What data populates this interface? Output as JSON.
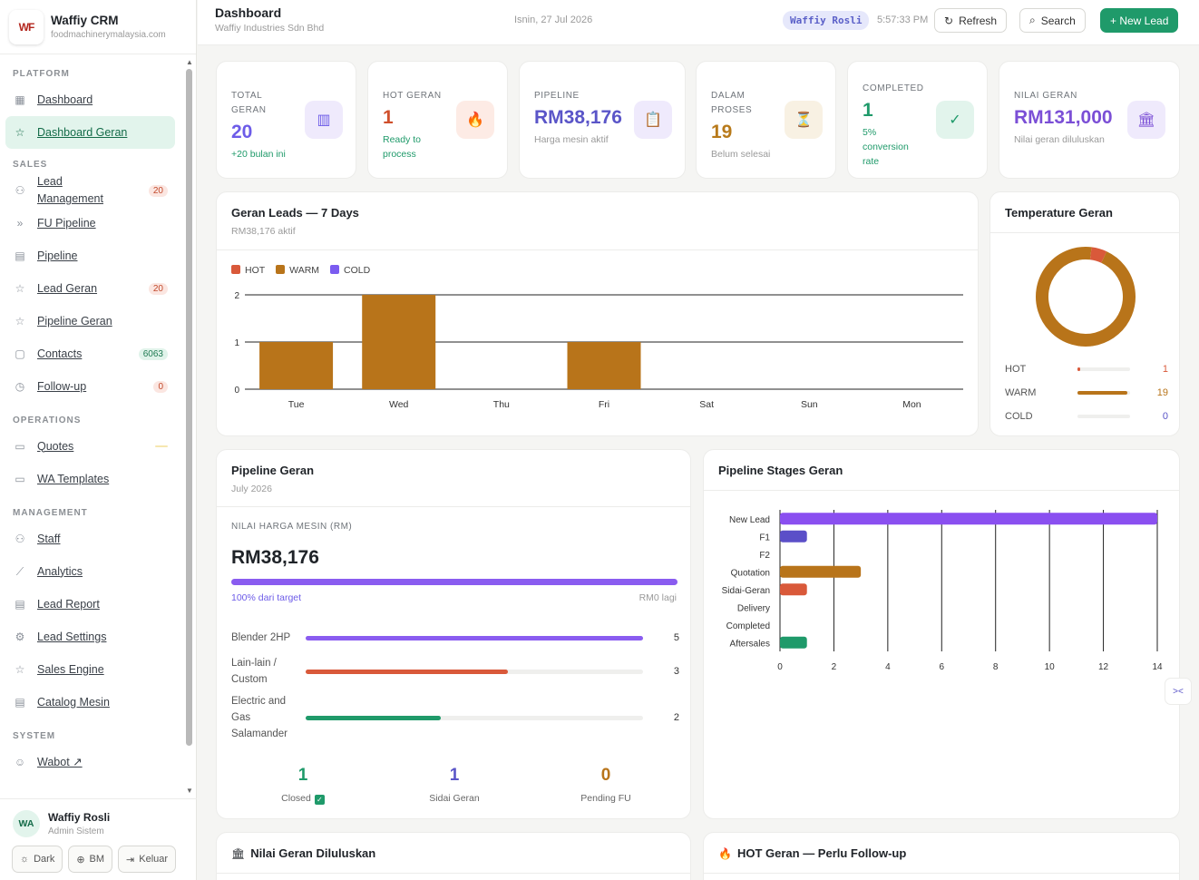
{
  "brand": {
    "logo_text": "WF",
    "name": "Waffiy CRM",
    "domain": "foodmachinerymalaysia.com"
  },
  "sidebar": {
    "sections": [
      {
        "title": "PLATFORM",
        "items": [
          {
            "label": "Dashboard",
            "icon": "grid-icon"
          },
          {
            "label": "Dashboard Geran",
            "icon": "star-icon",
            "active": true
          }
        ]
      },
      {
        "title": "SALES",
        "items": [
          {
            "label": "Lead\nManagement",
            "icon": "user-icon",
            "badge": "20"
          },
          {
            "label": "FU Pipeline",
            "icon": "chevrons-right-icon"
          },
          {
            "label": "Pipeline",
            "icon": "table-icon"
          },
          {
            "label": "Lead Geran",
            "icon": "star-icon",
            "badge": "20"
          },
          {
            "label": "Pipeline Geran",
            "icon": "star-icon"
          },
          {
            "label": "Contacts",
            "icon": "contact-icon",
            "badge": "6063",
            "badge_color": "green"
          },
          {
            "label": "Follow-up",
            "icon": "clock-icon",
            "badge": "0"
          }
        ]
      },
      {
        "title": "OPERATIONS",
        "items": [
          {
            "label": "Quotes",
            "icon": "document-icon",
            "badge": "",
            "badge_color": "amber"
          },
          {
            "label": "WA Templates",
            "icon": "document-icon"
          }
        ]
      },
      {
        "title": "MANAGEMENT",
        "items": [
          {
            "label": "Staff",
            "icon": "users-icon"
          },
          {
            "label": "Analytics",
            "icon": "trend-icon"
          },
          {
            "label": "Lead Report",
            "icon": "report-icon"
          },
          {
            "label": "Lead Settings",
            "icon": "settings-icon"
          },
          {
            "label": "Sales Engine",
            "icon": "star-icon"
          },
          {
            "label": "Catalog Mesin",
            "icon": "table-icon"
          }
        ]
      },
      {
        "title": "SYSTEM",
        "items": [
          {
            "label": "Wabot ↗",
            "icon": "bot-icon"
          }
        ]
      }
    ]
  },
  "user": {
    "initials": "WA",
    "name": "Waffiy Rosli",
    "role": "Admin Sistem",
    "dark_label": "Dark",
    "lang_label": "BM",
    "logout_label": "Keluar"
  },
  "header": {
    "title": "Dashboard",
    "subtitle": "Waffiy Industries Sdn Bhd",
    "date": "Isnin, 27 Jul 2026",
    "user_chip": "Waffiy Rosli",
    "time": "5:57:33 PM",
    "refresh_label": "Refresh",
    "search_label": "Search",
    "new_lead_label": "+ New Lead"
  },
  "stats": [
    {
      "label": "TOTAL\nGERAN",
      "value": "20",
      "sub": "+20 bulan ini",
      "color": "#6d5ce8",
      "sub_color": "#1f9a6a",
      "icon": "factory-icon",
      "icon_bg": "#efeafc",
      "glyph": "▥"
    },
    {
      "label": "HOT GERAN",
      "value": "1",
      "sub": "Ready to\nprocess",
      "color": "#d0502c",
      "sub_color": "#1f9a6a",
      "icon": "fire-icon",
      "icon_bg": "#fdebe5",
      "glyph": "🔥"
    },
    {
      "label": "PIPELINE",
      "value": "RM38,176",
      "sub": "Harga mesin aktif",
      "color": "#5a55c8",
      "sub_color": "#9a9a9a",
      "icon": "clipboard-icon",
      "icon_bg": "#efeafc",
      "glyph": "📋"
    },
    {
      "label": "DALAM\nPROSES",
      "value": "19",
      "sub": "Belum selesai",
      "color": "#b87a1a",
      "sub_color": "#9a9a9a",
      "icon": "hourglass-icon",
      "icon_bg": "#f8f1e3",
      "glyph": "⏳"
    },
    {
      "label": "COMPLETED",
      "value": "1",
      "sub": "5%\nconversion\nrate",
      "color": "#1f9a6a",
      "sub_color": "#1f9a6a",
      "icon": "check-icon",
      "icon_bg": "#e2f4ec",
      "glyph": "✓"
    },
    {
      "label": "NILAI GERAN",
      "value": "RM131,000",
      "sub": "Nilai geran diluluskan",
      "color": "#7b4fd6",
      "sub_color": "#9a9a9a",
      "icon": "bank-icon",
      "icon_bg": "#efeafc",
      "glyph": "🏛"
    }
  ],
  "leads_card": {
    "title": "Geran Leads — 7 Days",
    "subtitle": "RM38,176 aktif"
  },
  "chart_data": [
    {
      "type": "bar",
      "title": "Geran Leads — 7 Days",
      "categories": [
        "Tue",
        "Wed",
        "Thu",
        "Fri",
        "Sat",
        "Sun",
        "Mon"
      ],
      "series": [
        {
          "name": "HOT",
          "color": "#d9593a",
          "values": [
            0,
            0,
            0,
            0,
            0,
            0,
            0
          ]
        },
        {
          "name": "WARM",
          "color": "#b8741a",
          "values": [
            1,
            2,
            0,
            1,
            0,
            0,
            0
          ]
        },
        {
          "name": "COLD",
          "color": "#7b5cf0",
          "values": [
            0,
            0,
            0,
            0,
            0,
            0,
            0
          ]
        }
      ],
      "ylim": [
        0,
        2
      ],
      "yticks": [
        0,
        1,
        2
      ],
      "legend": "top-left",
      "grid": true
    },
    {
      "type": "pie",
      "title": "Temperature Geran",
      "categories": [
        "HOT",
        "WARM",
        "COLD"
      ],
      "values": [
        1,
        19,
        0
      ],
      "colors": [
        "#d9593a",
        "#b8741a",
        "#7b5cf0"
      ]
    },
    {
      "type": "bar",
      "orientation": "horizontal",
      "title": "Pipeline Stages Geran",
      "categories": [
        "New Lead",
        "F1",
        "F2",
        "Quotation",
        "Sidai-Geran",
        "Delivery",
        "Completed",
        "Aftersales"
      ],
      "values": [
        14,
        1,
        0,
        3,
        1,
        0,
        0,
        1
      ],
      "colors": [
        "#8a4ff0",
        "#5b4fc8",
        "#5b4fc8",
        "#b8741a",
        "#d9593a",
        "#1f9a6a",
        "#1f9a6a",
        "#1f9a6a"
      ],
      "xlim": [
        0,
        14
      ],
      "xticks": [
        0,
        2,
        4,
        6,
        8,
        10,
        12,
        14
      ],
      "grid": true
    }
  ],
  "temperature": {
    "title": "Temperature Geran",
    "rows": [
      {
        "label": "HOT",
        "value": "1",
        "fraction": 0.05,
        "color": "#d9593a"
      },
      {
        "label": "WARM",
        "value": "19",
        "fraction": 0.95,
        "color": "#b8741a"
      },
      {
        "label": "COLD",
        "value": "0",
        "fraction": 0,
        "color": "#5a55c8"
      }
    ]
  },
  "pipeline": {
    "title": "Pipeline Geran",
    "subtitle": "July 2026",
    "metric_label": "NILAI HARGA MESIN (RM)",
    "metric_value": "RM38,176",
    "progress_fraction": 1.0,
    "progress_label": "100% dari target",
    "remaining_label": "RM0 lagi",
    "rows": [
      {
        "label": "Blender 2HP",
        "value": "5",
        "fraction": 1.0,
        "color": "#8a5cf0"
      },
      {
        "label": "Lain-lain /\nCustom",
        "value": "3",
        "fraction": 0.6,
        "color": "#d9593a"
      },
      {
        "label": "Electric and\nGas\nSalamander",
        "value": "2",
        "fraction": 0.4,
        "color": "#1f9a6a"
      }
    ],
    "minis": [
      {
        "value": "1",
        "label": "Closed",
        "color": "#1f9a6a",
        "check": "✓"
      },
      {
        "value": "1",
        "label": "Sidai Geran",
        "color": "#5a55c8"
      },
      {
        "value": "0",
        "label": "Pending FU",
        "color": "#b8741a"
      }
    ]
  },
  "stages_card": {
    "title": "Pipeline Stages Geran"
  },
  "bottom": {
    "nilai_title": "Nilai Geran Diluluskan",
    "hot_title": "HOT Geran — Perlu Follow-up"
  }
}
